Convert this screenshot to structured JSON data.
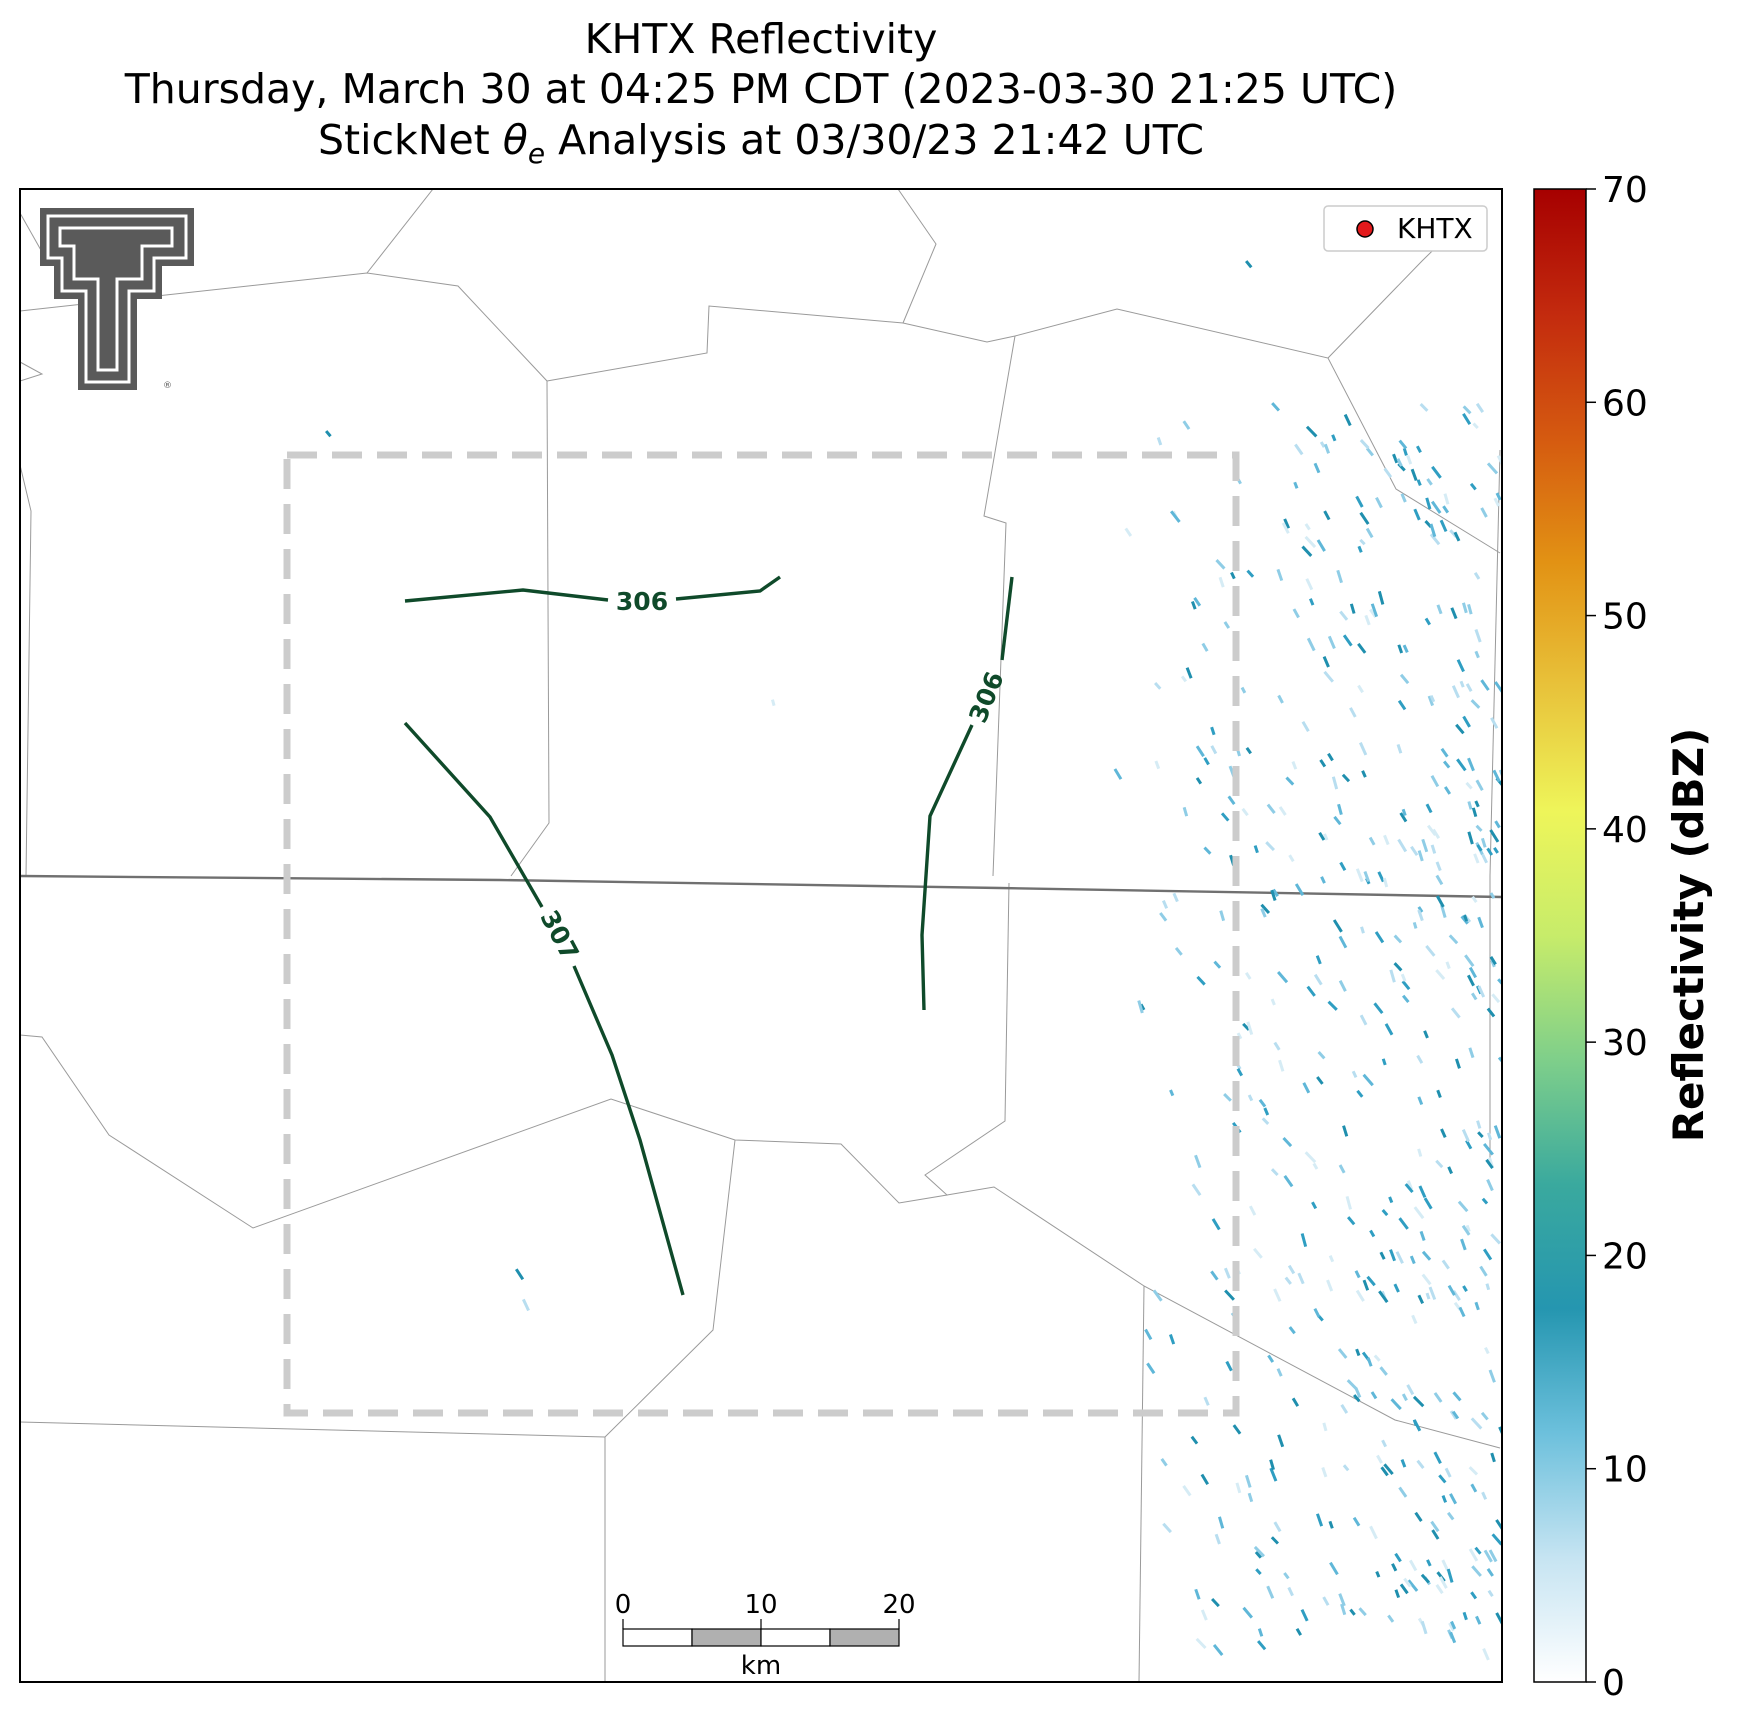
{
  "title": {
    "line1": "KHTX Reflectivity",
    "line2": "Thursday, March 30 at 04:25 PM CDT (2023-03-30 21:25 UTC)",
    "line3_prefix": "StickNet ",
    "line3_theta": "θ",
    "line3_sub": "e",
    "line3_suffix": " Analysis at 03/30/23 21:42 UTC"
  },
  "legend": {
    "label": "KHTX",
    "marker_color": "#e31a1c"
  },
  "colorbar": {
    "label": "Reflectivity (dBZ)",
    "ticks": [
      "0",
      "10",
      "20",
      "30",
      "40",
      "50",
      "60",
      "70"
    ],
    "range": [
      0,
      70
    ],
    "stops": [
      "#ffffff",
      "#c6e4f2",
      "#6cc0dc",
      "#2596b0",
      "#3aa99e",
      "#7fcf8a",
      "#c7ec6a",
      "#eef55a",
      "#e8c23a",
      "#e29214",
      "#d55a10",
      "#c32a0e",
      "#a60000"
    ]
  },
  "contours": [
    {
      "label": "306"
    },
    {
      "label": "306"
    },
    {
      "label": "307"
    }
  ],
  "scale_bar": {
    "ticks": [
      "0",
      "10",
      "20"
    ],
    "unit": "km"
  },
  "logo": {
    "name": "Texas Tech Double T",
    "mark": "®"
  },
  "colors": {
    "contour": "#0f4a2a",
    "domain_box": "#cccccc",
    "county_lines": "#9a9a9a",
    "state_line": "#707070"
  }
}
